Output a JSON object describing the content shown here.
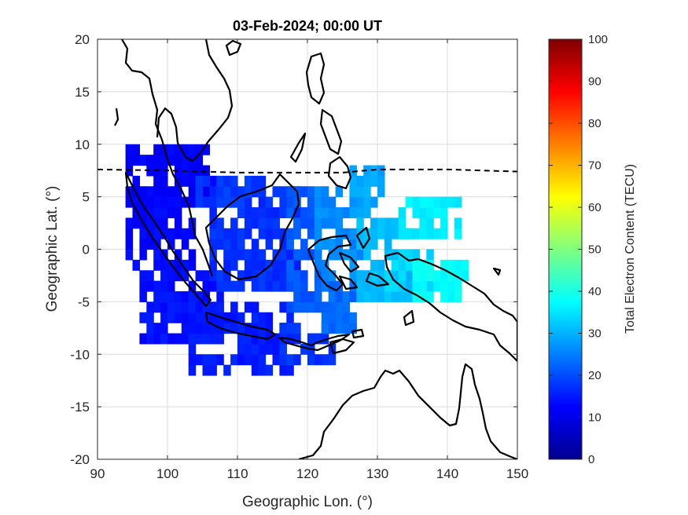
{
  "chart_data": {
    "type": "heatmap",
    "title": "03-Feb-2024; 00:00 UT",
    "xlabel": "Geographic Lon. (°)",
    "ylabel": "Geographic Lat. (°)",
    "xlim": [
      90,
      150
    ],
    "ylim": [
      -20,
      20
    ],
    "xticks": [
      "90",
      "100",
      "110",
      "120",
      "130",
      "140",
      "150"
    ],
    "yticks": [
      "20",
      "15",
      "10",
      "5",
      "0",
      "-5",
      "-10",
      "-15",
      "-20"
    ],
    "grid": true,
    "colorbar": {
      "label": "Total Electron Content (TECU)",
      "range": [
        0,
        100
      ],
      "ticks": [
        "0",
        "10",
        "20",
        "30",
        "40",
        "50",
        "60",
        "70",
        "80",
        "90",
        "100"
      ],
      "colormap": "jet"
    },
    "magnetic_equator_line": {
      "style": "dashed",
      "lon": [
        90,
        100,
        110,
        120,
        125,
        130,
        140,
        150
      ],
      "lat": [
        7.6,
        7.5,
        7.3,
        7.3,
        7.3,
        7.6,
        7.6,
        7.4
      ]
    },
    "tec_regions": [
      {
        "lon": [
          94,
          107
        ],
        "lat": [
          5,
          10
        ],
        "tec": 12
      },
      {
        "lon": [
          94,
          104
        ],
        "lat": [
          -2,
          5
        ],
        "tec": 13
      },
      {
        "lon": [
          96,
          108
        ],
        "lat": [
          -9,
          -2
        ],
        "tec": 14
      },
      {
        "lon": [
          103,
          118
        ],
        "lat": [
          -12,
          -5
        ],
        "tec": 15
      },
      {
        "lon": [
          116,
          124
        ],
        "lat": [
          -11,
          -7
        ],
        "tec": 17
      },
      {
        "lon": [
          106,
          119
        ],
        "lat": [
          -4,
          6
        ],
        "tec": 17
      },
      {
        "lon": [
          104,
          114
        ],
        "lat": [
          4,
          7
        ],
        "tec": 18
      },
      {
        "lon": [
          117,
          122
        ],
        "lat": [
          -6,
          6
        ],
        "tec": 21
      },
      {
        "lon": [
          122,
          127
        ],
        "lat": [
          -8,
          -3
        ],
        "tec": 23
      },
      {
        "lon": [
          121,
          128
        ],
        "lat": [
          -3,
          6
        ],
        "tec": 26
      },
      {
        "lon": [
          126,
          131
        ],
        "lat": [
          3,
          8
        ],
        "tec": 29
      },
      {
        "lon": [
          127,
          135
        ],
        "lat": [
          -5,
          3
        ],
        "tec": 31
      },
      {
        "lon": [
          131,
          138
        ],
        "lat": [
          -4,
          0
        ],
        "tec": 34
      },
      {
        "lon": [
          133,
          142
        ],
        "lat": [
          1,
          5
        ],
        "tec": 36
      },
      {
        "lon": [
          135,
          143
        ],
        "lat": [
          -5,
          -1
        ],
        "tec": 38
      }
    ]
  }
}
